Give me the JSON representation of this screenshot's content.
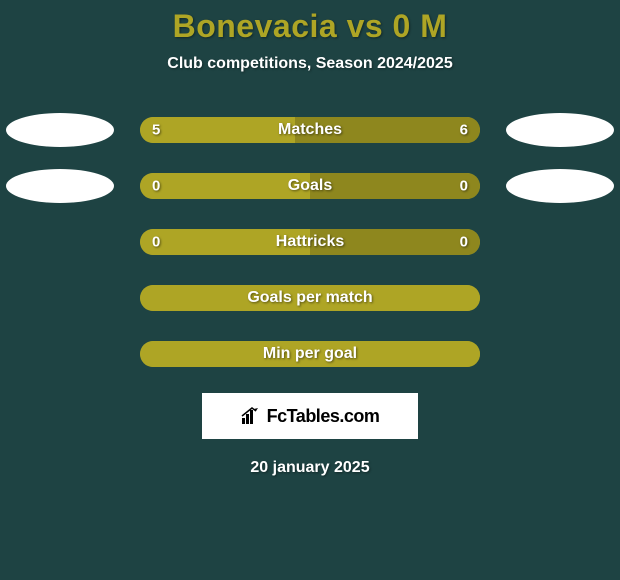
{
  "title": "Bonevacia vs 0 M",
  "subtitle": "Club competitions, Season 2024/2025",
  "date": "20 january 2025",
  "colors": {
    "background": "#1e4343",
    "accent": "#aea525",
    "bar_dark": "#8e871e",
    "ellipse": "#ffffff",
    "text_light": "#ffffff"
  },
  "logo": "FcTables.com",
  "rows": [
    {
      "label": "Matches",
      "left_value": "5",
      "right_value": "6",
      "left_pct": 45.5,
      "right_pct": 54.5,
      "left_color": "#aea525",
      "right_color": "#8e871e",
      "show_left_ellipse": true,
      "show_right_ellipse": true,
      "show_values": true
    },
    {
      "label": "Goals",
      "left_value": "0",
      "right_value": "0",
      "left_pct": 50,
      "right_pct": 50,
      "left_color": "#aea525",
      "right_color": "#8e871e",
      "show_left_ellipse": true,
      "show_right_ellipse": true,
      "show_values": true
    },
    {
      "label": "Hattricks",
      "left_value": "0",
      "right_value": "0",
      "left_pct": 50,
      "right_pct": 50,
      "left_color": "#aea525",
      "right_color": "#8e871e",
      "show_left_ellipse": false,
      "show_right_ellipse": false,
      "show_values": true
    },
    {
      "label": "Goals per match",
      "left_value": "",
      "right_value": "",
      "left_pct": 100,
      "right_pct": 0,
      "left_color": "#aea525",
      "right_color": "#aea525",
      "show_left_ellipse": false,
      "show_right_ellipse": false,
      "show_values": false
    },
    {
      "label": "Min per goal",
      "left_value": "",
      "right_value": "",
      "left_pct": 100,
      "right_pct": 0,
      "left_color": "#aea525",
      "right_color": "#aea525",
      "show_left_ellipse": false,
      "show_right_ellipse": false,
      "show_values": false
    }
  ]
}
